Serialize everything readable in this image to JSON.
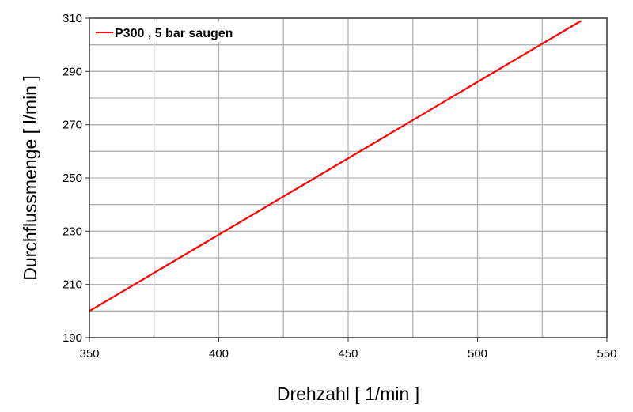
{
  "chart_data": {
    "type": "line",
    "xlabel": "Drehzahl [ 1/min ]",
    "ylabel": "Durchflussmenge [ l/min ]",
    "xlim": [
      350,
      550
    ],
    "ylim": [
      190,
      310
    ],
    "xticks": [
      350,
      400,
      450,
      500,
      550
    ],
    "yticks": [
      190,
      210,
      230,
      250,
      270,
      290,
      310
    ],
    "x_grid_step": 25,
    "y_grid_step": 10,
    "grid": true,
    "legend_position": "top-left",
    "series": [
      {
        "name": "P300 , 5 bar saugen",
        "color": "#ff0000",
        "x": [
          350,
          540
        ],
        "y": [
          200,
          309
        ]
      }
    ]
  }
}
